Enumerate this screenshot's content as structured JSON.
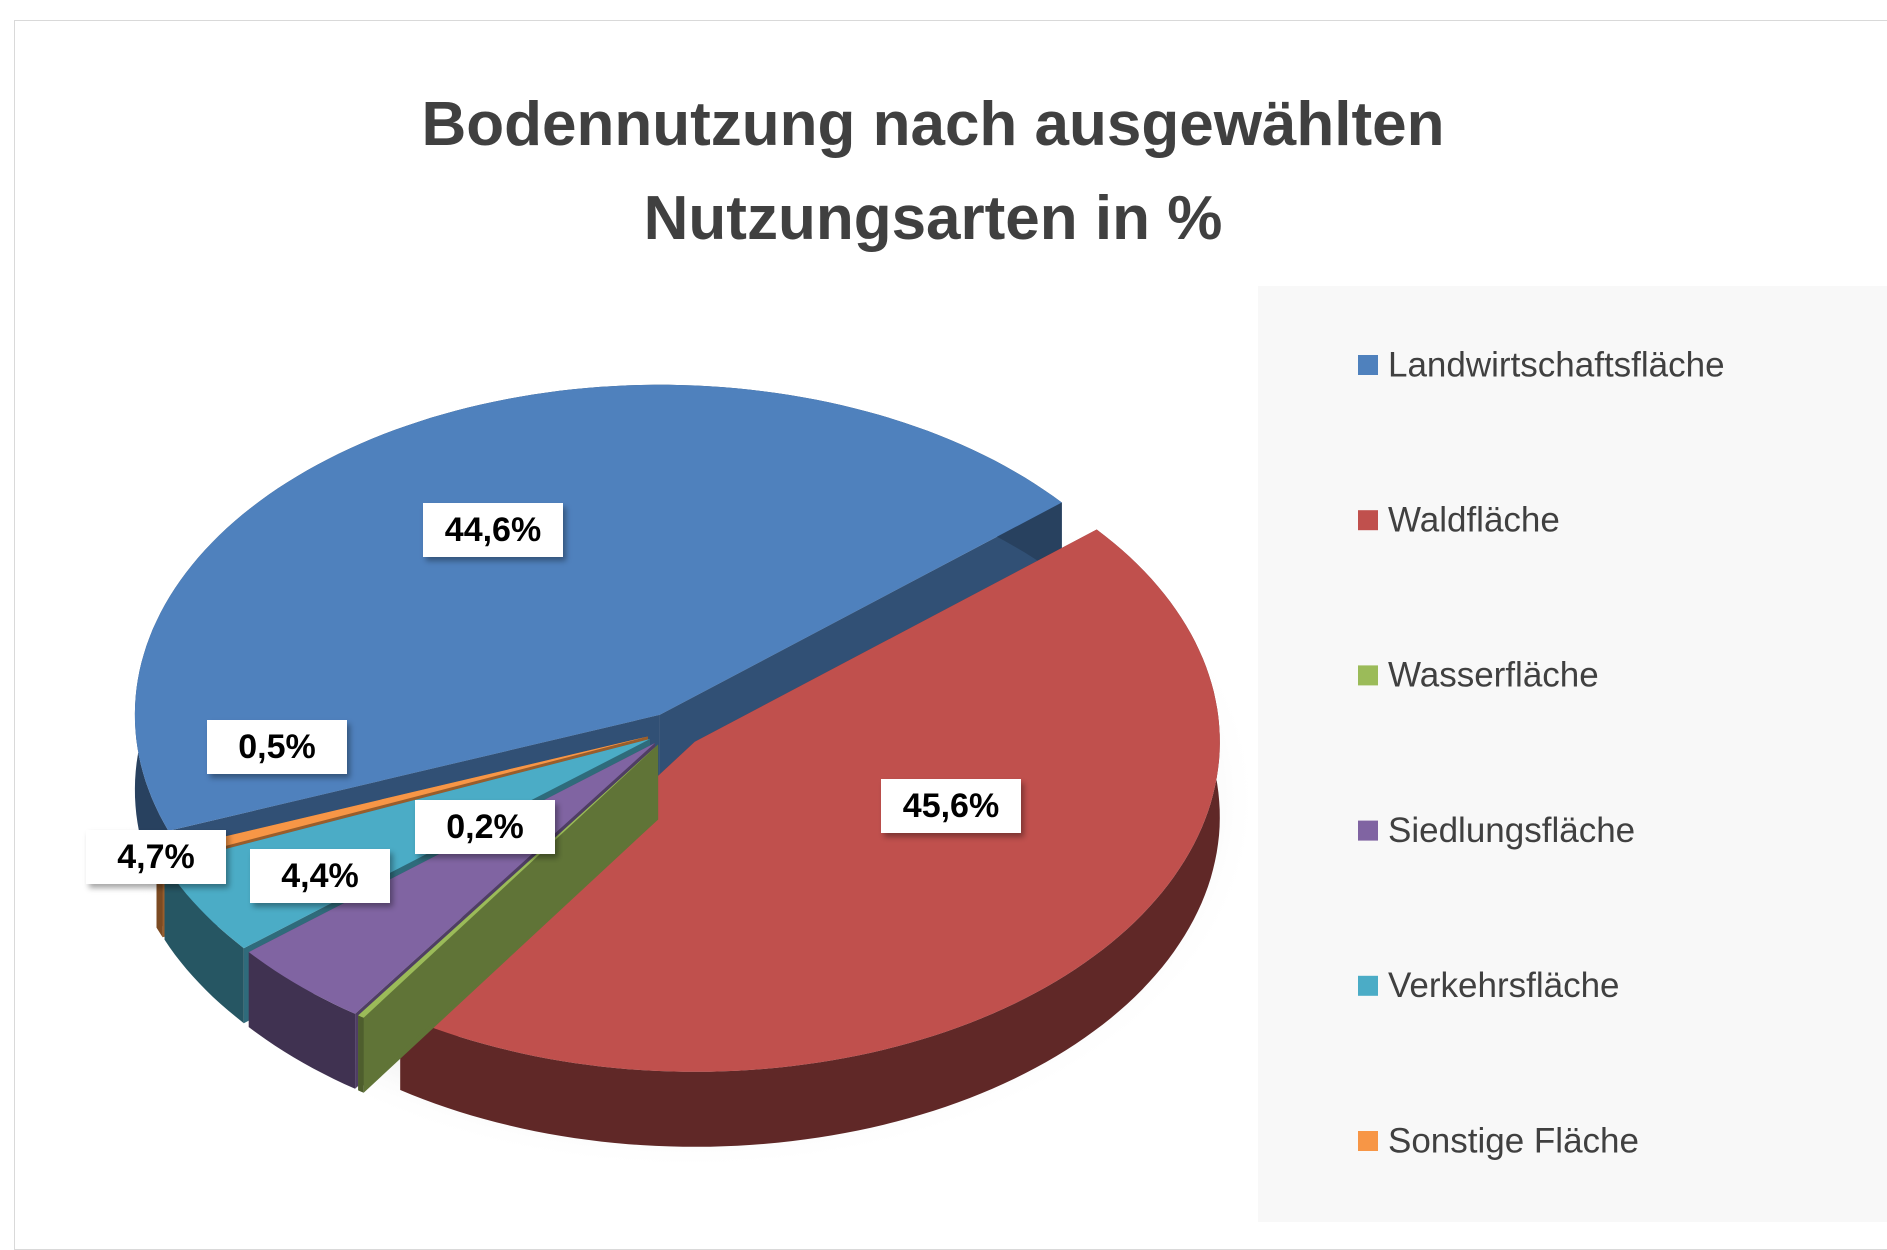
{
  "chart_data": {
    "type": "pie3d",
    "title": "Bodennutzung nach ausgewählten Nutzungsarten in %",
    "categories": [
      "Landwirtschaftsfläche",
      "Waldfläche",
      "Wasserfläche",
      "Siedlungsfläche",
      "Verkehrsfläche",
      "Sonstige Fläche"
    ],
    "values": [
      44.6,
      45.6,
      0.2,
      4.4,
      4.7,
      0.5
    ],
    "value_labels": [
      "44,6%",
      "45,6%",
      "0,2%",
      "4,4%",
      "4,7%",
      "0,5%"
    ],
    "colors": [
      "#4f81bd",
      "#c0504d",
      "#9bbb59",
      "#8064a2",
      "#4bacc6",
      "#f79646"
    ],
    "legend": "right"
  }
}
